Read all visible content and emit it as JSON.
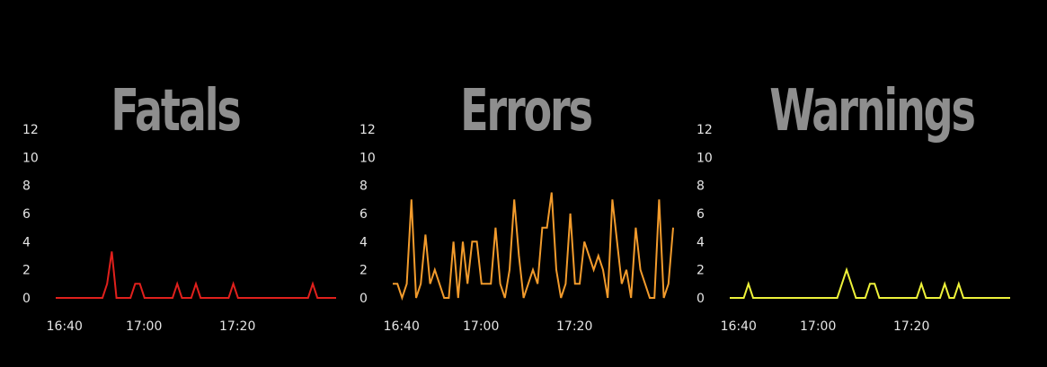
{
  "chart_data": [
    {
      "type": "line",
      "title": "Fatals",
      "color": "#e0201c",
      "y_ticks": [
        "0",
        "2",
        "4",
        "6",
        "8",
        "10",
        "12"
      ],
      "ylim": [
        0,
        12
      ],
      "x_ticks": [
        "16:40",
        "17:00",
        "17:20"
      ],
      "x": [
        0,
        10,
        11,
        12,
        13,
        14,
        16,
        17,
        18,
        19,
        20,
        25,
        26,
        27,
        29,
        30,
        31,
        37,
        38,
        39,
        54,
        55,
        56,
        60
      ],
      "values": [
        0,
        0,
        1,
        3.3,
        0,
        0,
        0,
        1,
        1,
        0,
        0,
        0,
        1,
        0,
        0,
        1,
        0,
        0,
        1,
        0,
        0,
        1,
        0,
        0
      ]
    },
    {
      "type": "line",
      "title": "Errors",
      "color": "#f29b2c",
      "y_ticks": [
        "0",
        "2",
        "4",
        "6",
        "8",
        "10",
        "12"
      ],
      "ylim": [
        0,
        12
      ],
      "x_ticks": [
        "16:40",
        "17:00",
        "17:20"
      ],
      "x": [
        0,
        1,
        2,
        3,
        4,
        5,
        6,
        7,
        8,
        9,
        10,
        11,
        12,
        13,
        14,
        15,
        16,
        17,
        18,
        19,
        20,
        21,
        22,
        23,
        24,
        25,
        26,
        27,
        28,
        29,
        30,
        31,
        32,
        33,
        34,
        35,
        36,
        37,
        38,
        39,
        40,
        41,
        42,
        43,
        44,
        45,
        46,
        47,
        48,
        49,
        50,
        51,
        52,
        53,
        54,
        55,
        56,
        57,
        58,
        59,
        60
      ],
      "values": [
        1,
        1,
        0,
        1,
        7,
        0,
        1,
        4.5,
        1,
        2,
        1,
        0,
        0,
        4,
        0,
        4,
        1,
        4,
        4,
        1,
        1,
        1,
        5,
        1,
        0,
        2,
        7,
        3,
        0,
        1,
        2,
        1,
        5,
        5,
        7.5,
        2,
        0,
        1,
        6,
        1,
        1,
        4,
        3,
        2,
        3,
        2,
        0,
        7,
        4,
        1,
        2,
        0,
        5,
        2,
        1,
        0,
        0,
        7,
        0,
        1,
        5
      ]
    },
    {
      "type": "line",
      "title": "Warnings",
      "color": "#eef23a",
      "y_ticks": [
        "0",
        "2",
        "4",
        "6",
        "8",
        "10",
        "12"
      ],
      "ylim": [
        0,
        12
      ],
      "x_ticks": [
        "16:40",
        "17:00",
        "17:20"
      ],
      "x": [
        0,
        3,
        4,
        5,
        23,
        24,
        25,
        26,
        27,
        29,
        30,
        31,
        32,
        40,
        41,
        42,
        45,
        46,
        47,
        48,
        49,
        50,
        60
      ],
      "values": [
        0,
        0,
        1,
        0,
        0,
        1,
        2,
        1,
        0,
        0,
        1,
        1,
        0,
        0,
        1,
        0,
        0,
        1,
        0,
        0,
        1,
        0,
        0
      ]
    }
  ]
}
